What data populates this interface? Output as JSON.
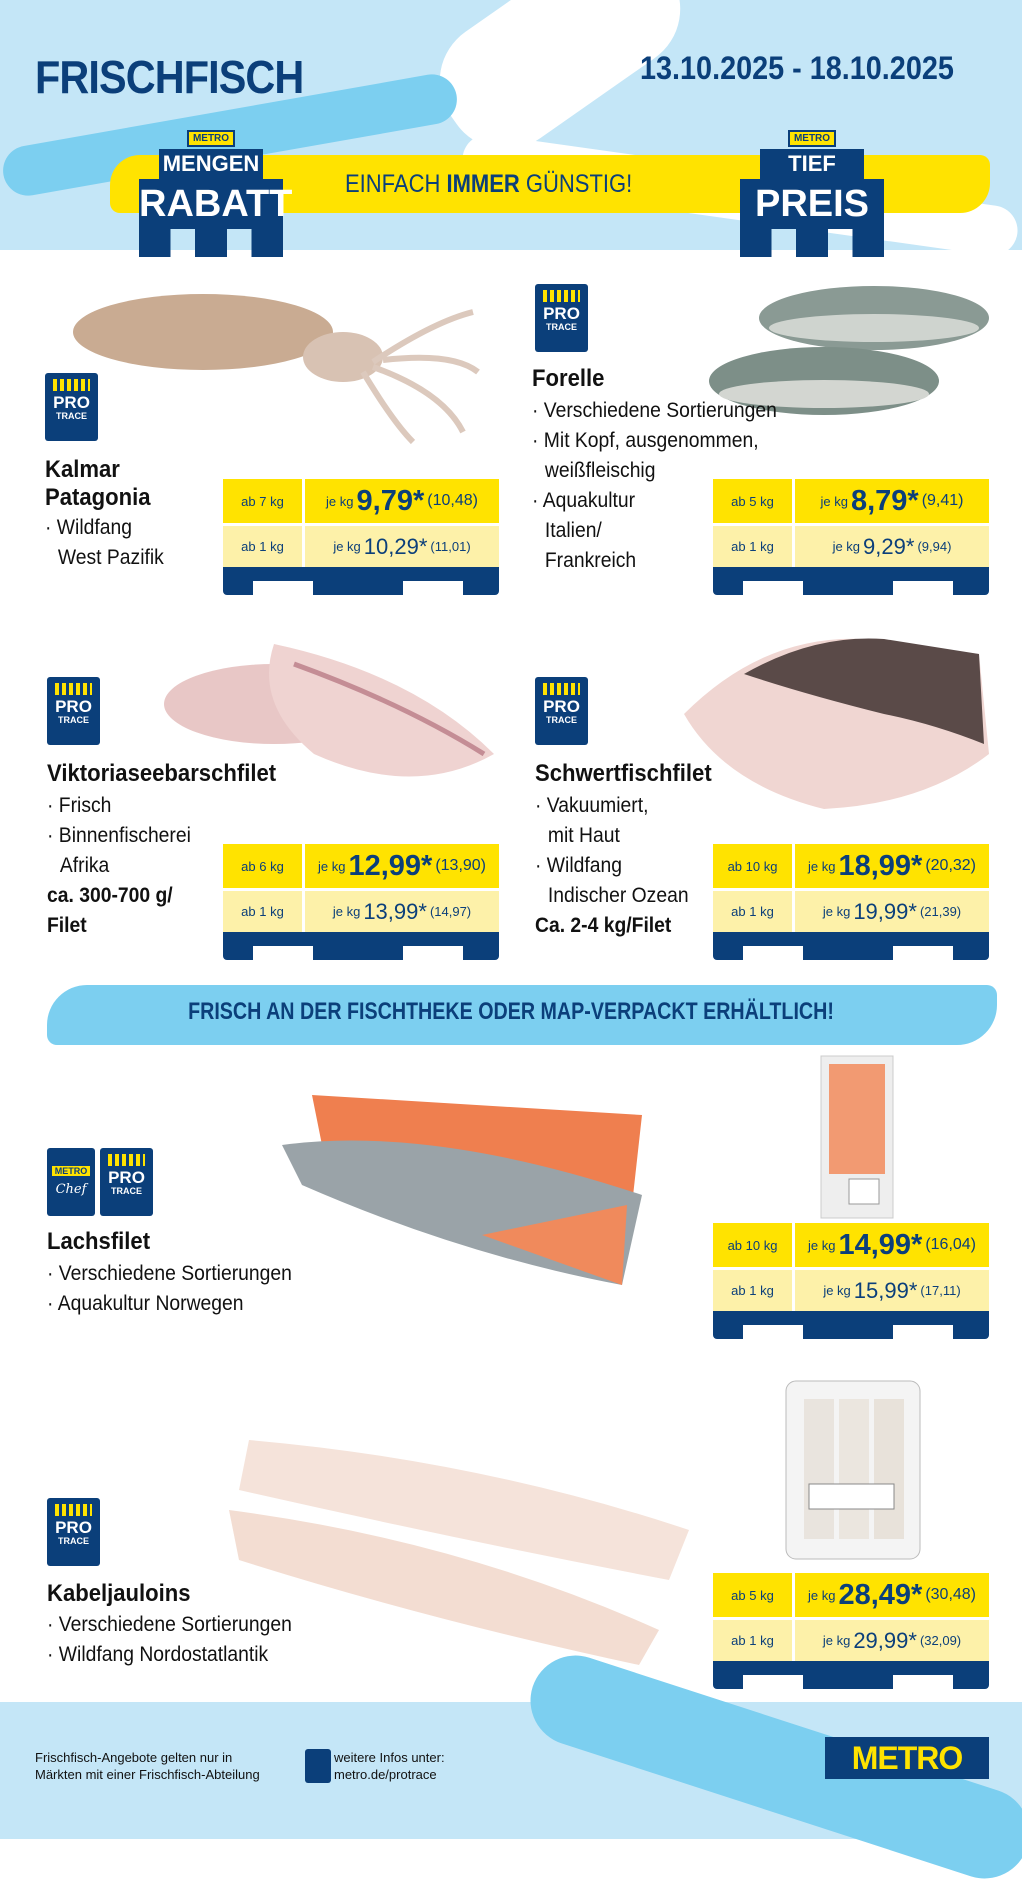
{
  "header": {
    "title": "FRISCHFISCH",
    "date_range": "13.10.2025 - 18.10.2025"
  },
  "promo": {
    "badge_left": {
      "brand": "METRO",
      "line1": "MENGEN",
      "line2": "RABATT"
    },
    "slogan_pre": "EINFACH ",
    "slogan_bold": "IMMER",
    "slogan_post": " GÜNSTIG!",
    "badge_right": {
      "brand": "METRO",
      "line1": "TIEF",
      "line2": "PREIS"
    }
  },
  "protrace": {
    "line1": "PRO",
    "line2": "TRACE"
  },
  "chef": {
    "brand": "METRO",
    "label": "Chef"
  },
  "products": [
    {
      "name": "Kalmar",
      "name2": "Patagonia",
      "bullets": [
        "Wildfang"
      ],
      "cont": "West Pazifik",
      "tier1": {
        "qty": "ab 7 kg",
        "unit": "je kg",
        "price": "9,79*",
        "gross": "(10,48)"
      },
      "tier2": {
        "qty": "ab 1 kg",
        "unit": "je kg",
        "price": "10,29*",
        "gross": "(11,01)"
      }
    },
    {
      "name": "Forelle",
      "bullets": [
        "Verschiedene Sortierungen",
        "Mit Kopf, ausgenommen,",
        "Aquakultur"
      ],
      "cont1": "weißfleischig",
      "cont2": "Italien/",
      "cont3": "Frankreich",
      "tier1": {
        "qty": "ab 5 kg",
        "unit": "je kg",
        "price": "8,79*",
        "gross": "(9,41)"
      },
      "tier2": {
        "qty": "ab 1 kg",
        "unit": "je kg",
        "price": "9,29*",
        "gross": "(9,94)"
      }
    },
    {
      "name": "Viktoriaseebarschfilet",
      "bullets": [
        "Frisch",
        "Binnenfischerei"
      ],
      "cont": "Afrika",
      "weight1": "ca. 300-700 g/",
      "weight2": "Filet",
      "tier1": {
        "qty": "ab 6 kg",
        "unit": "je kg",
        "price": "12,99*",
        "gross": "(13,90)"
      },
      "tier2": {
        "qty": "ab 1 kg",
        "unit": "je kg",
        "price": "13,99*",
        "gross": "(14,97)"
      }
    },
    {
      "name": "Schwertfischfilet",
      "bullets": [
        "Vakuumiert,",
        "Wildfang"
      ],
      "cont1": "mit Haut",
      "cont2": "Indischer Ozean",
      "weight": "Ca. 2-4 kg/Filet",
      "tier1": {
        "qty": "ab 10 kg",
        "unit": "je kg",
        "price": "18,99*",
        "gross": "(20,32)"
      },
      "tier2": {
        "qty": "ab 1 kg",
        "unit": "je kg",
        "price": "19,99*",
        "gross": "(21,39)"
      }
    },
    {
      "name": "Lachsfilet",
      "bullets": [
        "Verschiedene Sortierungen",
        "Aquakultur Norwegen"
      ],
      "tier1": {
        "qty": "ab 10 kg",
        "unit": "je kg",
        "price": "14,99*",
        "gross": "(16,04)"
      },
      "tier2": {
        "qty": "ab 1 kg",
        "unit": "je kg",
        "price": "15,99*",
        "gross": "(17,11)"
      }
    },
    {
      "name": "Kabeljauloins",
      "bullets": [
        "Verschiedene Sortierungen",
        "Wildfang Nordostatlantik"
      ],
      "tier1": {
        "qty": "ab 5 kg",
        "unit": "je kg",
        "price": "28,49*",
        "gross": "(30,48)"
      },
      "tier2": {
        "qty": "ab 1 kg",
        "unit": "je kg",
        "price": "29,99*",
        "gross": "(32,09)"
      }
    }
  ],
  "banner": "FRISCH AN DER FISCHTHEKE ODER MAP-VERPACKT ERHÄLTLICH!",
  "footer": {
    "note1": "Frischfisch-Angebote gelten nur in",
    "note2": "Märkten mit einer Frischfisch-Abteilung",
    "info1": "weitere Infos unter:",
    "info2": "metro.de/protrace",
    "logo": "METRO"
  },
  "colors": {
    "brand_blue": "#0b3f7a",
    "brand_yellow": "#ffe300",
    "light_blue": "#c4e6f7",
    "accent_blue": "#7ccff0"
  }
}
